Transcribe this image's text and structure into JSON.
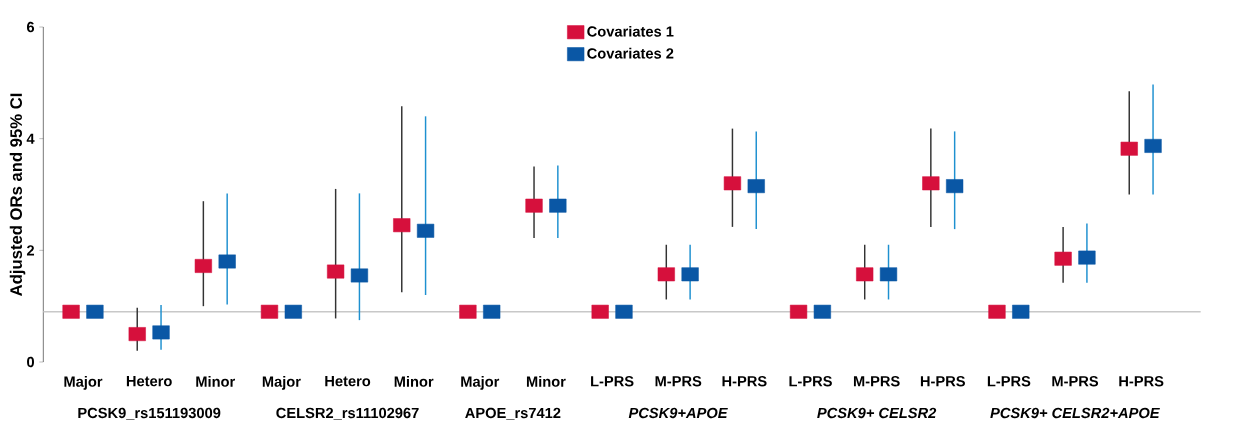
{
  "chart_data": {
    "type": "scatter",
    "ylabel": "Adjusted ORs and 95% CI",
    "categories": [
      "Major",
      "Hetero",
      "Minor",
      "Major",
      "Hetero",
      "Minor",
      "Major",
      "Minor",
      "L-PRS",
      "M-PRS",
      "H-PRS",
      "L-PRS",
      "M-PRS",
      "H-PRS",
      "L-PRS",
      "M-PRS",
      "H-PRS"
    ],
    "series": [
      {
        "name": "Covariates 1",
        "color": "#d6103c",
        "values": [
          0.9,
          0.5,
          1.72,
          0.9,
          1.62,
          2.45,
          0.9,
          2.8,
          0.9,
          1.57,
          3.2,
          0.9,
          1.57,
          3.2,
          0.9,
          1.85,
          3.82
        ],
        "errors": [
          null,
          [
            0.2,
            0.97
          ],
          [
            1.0,
            2.88
          ],
          null,
          [
            0.78,
            3.1
          ],
          [
            1.25,
            4.58
          ],
          null,
          [
            2.22,
            3.5
          ],
          null,
          [
            1.12,
            2.1
          ],
          [
            2.42,
            4.18
          ],
          null,
          [
            1.12,
            2.1
          ],
          [
            2.42,
            4.18
          ],
          null,
          [
            1.42,
            2.42
          ],
          [
            3.0,
            4.85
          ]
        ]
      },
      {
        "name": "Covariates 2",
        "color": "#0a57a5",
        "values": [
          0.9,
          0.53,
          1.8,
          0.9,
          1.55,
          2.35,
          0.9,
          2.8,
          0.9,
          1.57,
          3.15,
          0.9,
          1.57,
          3.15,
          0.9,
          1.87,
          3.87
        ],
        "errors": [
          null,
          [
            0.22,
            1.02
          ],
          [
            1.03,
            3.02
          ],
          null,
          [
            0.75,
            3.02
          ],
          [
            1.2,
            4.4
          ],
          null,
          [
            2.22,
            3.52
          ],
          null,
          [
            1.12,
            2.1
          ],
          [
            2.38,
            4.13
          ],
          null,
          [
            1.12,
            2.1
          ],
          [
            2.38,
            4.13
          ],
          null,
          [
            1.42,
            2.48
          ],
          [
            3.0,
            4.97
          ]
        ]
      }
    ],
    "ylim": [
      0,
      6
    ],
    "yticks": [
      0,
      2,
      4,
      6
    ],
    "ref_lines": [
      {
        "axis": "y",
        "value": 0.9,
        "color": "#c8c8c8"
      }
    ],
    "annotations": [
      "PCSK9_rs151193009",
      "CELSR2_rs11102967",
      "APOE_rs7412",
      "*PCSK9+APOE*",
      "*PCSK9+ CELSR2*",
      "*PCSK9+ CELSR2+APOE*"
    ],
    "legend": "top",
    "marker": "square",
    "grid": false
  }
}
